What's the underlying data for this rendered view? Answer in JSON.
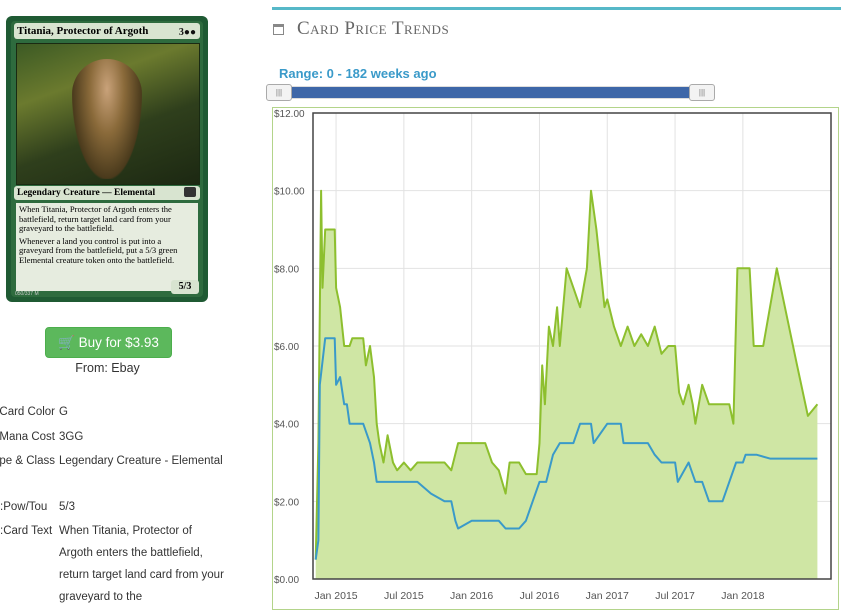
{
  "card": {
    "name": "Titania, Protector of Argoth",
    "mana_symbols": "3●●",
    "type_line": "Legendary Creature — Elemental",
    "rules_1": "When Titania, Protector of Argoth enters the battlefield, return target land card from your graveyard to the battlefield.",
    "rules_2": "Whenever a land you control is put into a graveyard from the battlefield, put a 5/3 green Elemental creature token onto the battlefield.",
    "pt": "5/3",
    "collector": "050/337 M"
  },
  "buy": {
    "label": "Buy for $3.93",
    "icon": "shopping-cart-icon"
  },
  "from": "From: Ebay",
  "attributes": [
    {
      "label": "Card Color:",
      "value": "G"
    },
    {
      "label": "Mana Cost",
      "value": "3GG"
    },
    {
      "label": "Type & Class:",
      "value": "Legendary Creature - Elemental"
    },
    {
      "label": "Pow/Tou:",
      "value": "5/3"
    },
    {
      "label": "Card Text:",
      "value": "When Titania, Protector of Argoth enters the battlefield, return target land card from your graveyard to the"
    }
  ],
  "section": {
    "title": "Card Price Trends",
    "icon": "calendar-icon",
    "accent": "#56b8c8"
  },
  "range": {
    "label": "Range: 0 - 182 weeks ago"
  },
  "chart_data": {
    "type": "area",
    "ylim": [
      0,
      12
    ],
    "yticks": [
      "$0.00",
      "$2.00",
      "$4.00",
      "$6.00",
      "$8.00",
      "$10.00",
      "$12.00"
    ],
    "xticks": [
      {
        "label": "Jan 2015",
        "x": 2015.0
      },
      {
        "label": "Jul 2015",
        "x": 2015.5
      },
      {
        "label": "Jan 2016",
        "x": 2016.0
      },
      {
        "label": "Jul 2016",
        "x": 2016.5
      },
      {
        "label": "Jan 2017",
        "x": 2017.0
      },
      {
        "label": "Jul 2017",
        "x": 2017.5
      },
      {
        "label": "Jan 2018",
        "x": 2018.0
      }
    ],
    "xlim": [
      2014.83,
      2018.65
    ],
    "grid": true,
    "series": [
      {
        "color": "#8dbf2e",
        "fill": "#cfe6a4",
        "points": [
          [
            2014.85,
            0.5
          ],
          [
            2014.87,
            3.5
          ],
          [
            2014.89,
            10.0
          ],
          [
            2014.9,
            7.5
          ],
          [
            2014.92,
            9.0
          ],
          [
            2014.99,
            9.0
          ],
          [
            2015.0,
            7.5
          ],
          [
            2015.03,
            7.0
          ],
          [
            2015.06,
            6.0
          ],
          [
            2015.1,
            6.0
          ],
          [
            2015.12,
            6.2
          ],
          [
            2015.2,
            6.2
          ],
          [
            2015.22,
            5.5
          ],
          [
            2015.25,
            6.0
          ],
          [
            2015.28,
            5.2
          ],
          [
            2015.3,
            4.0
          ],
          [
            2015.32,
            3.5
          ],
          [
            2015.35,
            3.0
          ],
          [
            2015.38,
            3.7
          ],
          [
            2015.42,
            3.0
          ],
          [
            2015.45,
            2.8
          ],
          [
            2015.5,
            3.0
          ],
          [
            2015.55,
            2.8
          ],
          [
            2015.6,
            3.0
          ],
          [
            2015.7,
            3.0
          ],
          [
            2015.8,
            3.0
          ],
          [
            2015.85,
            2.8
          ],
          [
            2015.9,
            3.5
          ],
          [
            2016.0,
            3.5
          ],
          [
            2016.1,
            3.5
          ],
          [
            2016.15,
            3.0
          ],
          [
            2016.2,
            2.8
          ],
          [
            2016.25,
            2.2
          ],
          [
            2016.28,
            3.0
          ],
          [
            2016.35,
            3.0
          ],
          [
            2016.4,
            2.7
          ],
          [
            2016.48,
            2.7
          ],
          [
            2016.5,
            3.5
          ],
          [
            2016.52,
            5.5
          ],
          [
            2016.54,
            4.5
          ],
          [
            2016.57,
            6.5
          ],
          [
            2016.6,
            6.0
          ],
          [
            2016.63,
            7.0
          ],
          [
            2016.65,
            6.0
          ],
          [
            2016.7,
            8.0
          ],
          [
            2016.75,
            7.5
          ],
          [
            2016.8,
            7.0
          ],
          [
            2016.85,
            8.0
          ],
          [
            2016.88,
            10.0
          ],
          [
            2016.92,
            9.0
          ],
          [
            2016.95,
            8.0
          ],
          [
            2016.98,
            7.0
          ],
          [
            2017.0,
            7.2
          ],
          [
            2017.05,
            6.5
          ],
          [
            2017.1,
            6.0
          ],
          [
            2017.15,
            6.5
          ],
          [
            2017.2,
            6.0
          ],
          [
            2017.25,
            6.3
          ],
          [
            2017.3,
            6.0
          ],
          [
            2017.35,
            6.5
          ],
          [
            2017.4,
            5.8
          ],
          [
            2017.45,
            6.0
          ],
          [
            2017.5,
            6.0
          ],
          [
            2017.53,
            4.8
          ],
          [
            2017.56,
            4.5
          ],
          [
            2017.6,
            5.0
          ],
          [
            2017.63,
            4.5
          ],
          [
            2017.65,
            4.0
          ],
          [
            2017.7,
            5.0
          ],
          [
            2017.75,
            4.5
          ],
          [
            2017.8,
            4.5
          ],
          [
            2017.9,
            4.5
          ],
          [
            2017.93,
            4.0
          ],
          [
            2017.96,
            8.0
          ],
          [
            2018.05,
            8.0
          ],
          [
            2018.08,
            6.0
          ],
          [
            2018.15,
            6.0
          ],
          [
            2018.25,
            8.0
          ],
          [
            2018.4,
            5.5
          ],
          [
            2018.48,
            4.2
          ],
          [
            2018.55,
            4.5
          ]
        ]
      },
      {
        "color": "#3a9ac9",
        "points": [
          [
            2014.85,
            0.5
          ],
          [
            2014.87,
            1.0
          ],
          [
            2014.88,
            5.0
          ],
          [
            2014.92,
            6.2
          ],
          [
            2014.99,
            6.2
          ],
          [
            2015.0,
            5.0
          ],
          [
            2015.03,
            5.2
          ],
          [
            2015.06,
            4.5
          ],
          [
            2015.08,
            4.5
          ],
          [
            2015.1,
            4.0
          ],
          [
            2015.2,
            4.0
          ],
          [
            2015.25,
            3.5
          ],
          [
            2015.28,
            3.0
          ],
          [
            2015.3,
            2.5
          ],
          [
            2015.4,
            2.5
          ],
          [
            2015.5,
            2.5
          ],
          [
            2015.6,
            2.5
          ],
          [
            2015.7,
            2.2
          ],
          [
            2015.8,
            2.0
          ],
          [
            2015.85,
            2.0
          ],
          [
            2015.88,
            1.5
          ],
          [
            2015.9,
            1.3
          ],
          [
            2016.0,
            1.5
          ],
          [
            2016.2,
            1.5
          ],
          [
            2016.25,
            1.3
          ],
          [
            2016.35,
            1.3
          ],
          [
            2016.4,
            1.5
          ],
          [
            2016.45,
            2.0
          ],
          [
            2016.5,
            2.5
          ],
          [
            2016.55,
            2.5
          ],
          [
            2016.6,
            3.2
          ],
          [
            2016.65,
            3.5
          ],
          [
            2016.75,
            3.5
          ],
          [
            2016.8,
            4.0
          ],
          [
            2016.88,
            4.0
          ],
          [
            2016.9,
            3.5
          ],
          [
            2017.0,
            4.0
          ],
          [
            2017.1,
            4.0
          ],
          [
            2017.12,
            3.5
          ],
          [
            2017.2,
            3.5
          ],
          [
            2017.3,
            3.5
          ],
          [
            2017.35,
            3.2
          ],
          [
            2017.4,
            3.0
          ],
          [
            2017.45,
            3.0
          ],
          [
            2017.5,
            3.0
          ],
          [
            2017.52,
            2.5
          ],
          [
            2017.6,
            3.0
          ],
          [
            2017.65,
            2.5
          ],
          [
            2017.7,
            2.5
          ],
          [
            2017.75,
            2.0
          ],
          [
            2017.85,
            2.0
          ],
          [
            2017.95,
            3.0
          ],
          [
            2018.0,
            3.0
          ],
          [
            2018.02,
            3.2
          ],
          [
            2018.1,
            3.2
          ],
          [
            2018.2,
            3.1
          ],
          [
            2018.55,
            3.1
          ]
        ]
      }
    ]
  }
}
